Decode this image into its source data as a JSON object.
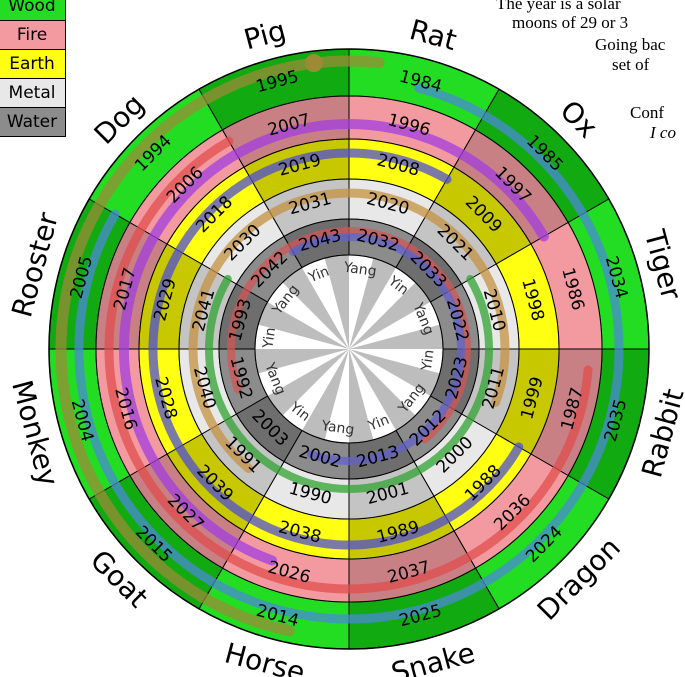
{
  "legend": [
    {
      "label": "Wood",
      "color": "#22dd22"
    },
    {
      "label": "Fire",
      "color": "#f39aa0"
    },
    {
      "label": "Earth",
      "color": "#ffff11"
    },
    {
      "label": "Metal",
      "color": "#e8e8e8"
    },
    {
      "label": "Water",
      "color": "#8c8c8c"
    }
  ],
  "notes": [
    "The year is a solar",
    "moons of 29 or 3",
    "Going bac",
    "set of",
    "Conf",
    "I co"
  ],
  "animals": [
    "Rat",
    "Ox",
    "Tiger",
    "Rabbit",
    "Dragon",
    "Snake",
    "Horse",
    "Goat",
    "Monkey",
    "Rooster",
    "Dog",
    "Pig"
  ],
  "rings": [
    [
      "1984",
      "1985",
      "2034",
      "2035",
      "2024",
      "2025",
      "2014",
      "2015",
      "2004",
      "2005",
      "1994",
      "1995"
    ],
    [
      "1996",
      "1997",
      "1986",
      "1987",
      "2036",
      "2037",
      "2026",
      "2027",
      "2016",
      "2017",
      "2006",
      "2007"
    ],
    [
      "2008",
      "2009",
      "1998",
      "1999",
      "1988",
      "1989",
      "2038",
      "2039",
      "2028",
      "2029",
      "2018",
      "2019"
    ],
    [
      "2020",
      "2021",
      "2010",
      "2011",
      "2000",
      "2001",
      "1990",
      "1991",
      "2040",
      "2041",
      "2030",
      "2031"
    ],
    [
      "2032",
      "2033",
      "2022",
      "2023",
      "2012",
      "2013",
      "2002",
      "2003",
      "1992",
      "1993",
      "2042",
      "2043"
    ]
  ],
  "yinyang": [
    "Yang",
    "Yin",
    "Yang",
    "Yin",
    "Yang",
    "Yin",
    "Yang",
    "Yin",
    "Yang",
    "Yin",
    "Yang",
    "Yin"
  ],
  "colors": {
    "wood": "#22dd22",
    "wood_dark": "#11aa11",
    "fire": "#f39aa0",
    "fire_dark": "#c88085",
    "earth": "#ffff11",
    "earth_dark": "#c8c800",
    "metal": "#e8e8e8",
    "metal_dark": "#c4c4c4",
    "water": "#8c8c8c",
    "water_dark": "#6e6e6e"
  }
}
